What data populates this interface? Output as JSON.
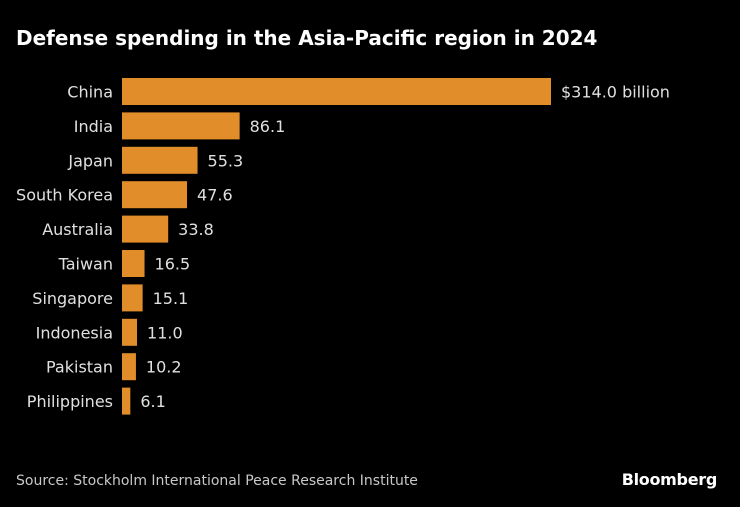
{
  "chart_data": {
    "type": "bar",
    "orientation": "horizontal",
    "title": "Defense spending in the Asia-Pacific region in 2024",
    "categories": [
      "China",
      "India",
      "Japan",
      "South Korea",
      "Australia",
      "Taiwan",
      "Singapore",
      "Indonesia",
      "Pakistan",
      "Philippines"
    ],
    "values": [
      314.0,
      86.1,
      55.3,
      47.6,
      33.8,
      16.5,
      15.1,
      11.0,
      10.2,
      6.1
    ],
    "data_labels": [
      "$314.0 billion",
      "86.1",
      "55.3",
      "47.6",
      "33.8",
      "16.5",
      "15.1",
      "11.0",
      "10.2",
      "6.1"
    ],
    "xlim": [
      0,
      314
    ],
    "grid": false,
    "bar_color": "#E08D2A"
  },
  "source": "Source: Stockholm International Peace Research Institute",
  "logo": "Bloomberg"
}
